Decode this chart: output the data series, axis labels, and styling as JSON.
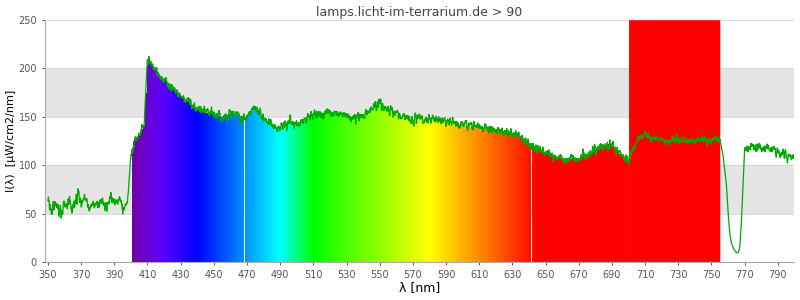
{
  "title": "lamps.licht-im-terrarium.de > 90",
  "xlabel": "λ [nm]",
  "ylabel": "I(λ)  [μW/cm2/nm]",
  "xlim": [
    348,
    800
  ],
  "ylim": [
    0,
    250
  ],
  "xticks": [
    350,
    370,
    390,
    410,
    430,
    450,
    470,
    490,
    510,
    530,
    550,
    570,
    590,
    610,
    630,
    650,
    670,
    690,
    710,
    730,
    750,
    770,
    790
  ],
  "yticks": [
    0,
    50,
    100,
    150,
    200,
    250
  ],
  "title_color": "#444444",
  "line_color": "#00aa00",
  "gray_band_color": "#e5e5e5",
  "figsize": [
    8.0,
    3.0
  ],
  "dpi": 100,
  "spectrum_vis_start": 401,
  "spectrum_vis_end": 700,
  "spectrum_red_start": 700,
  "spectrum_red_end": 755,
  "spectrum_dip_start": 755,
  "spectrum_dip_end": 770,
  "spectrum_after_dip": 770,
  "spectrum_end": 800,
  "envelope": [
    [
      350,
      57
    ],
    [
      352,
      55
    ],
    [
      355,
      60
    ],
    [
      358,
      50
    ],
    [
      360,
      58
    ],
    [
      363,
      65
    ],
    [
      365,
      55
    ],
    [
      368,
      70
    ],
    [
      370,
      60
    ],
    [
      372,
      68
    ],
    [
      375,
      55
    ],
    [
      378,
      62
    ],
    [
      380,
      58
    ],
    [
      383,
      65
    ],
    [
      385,
      55
    ],
    [
      388,
      70
    ],
    [
      390,
      60
    ],
    [
      393,
      68
    ],
    [
      395,
      55
    ],
    [
      398,
      62
    ],
    [
      400,
      110
    ],
    [
      402,
      125
    ],
    [
      404,
      130
    ],
    [
      406,
      135
    ],
    [
      408,
      140
    ],
    [
      410,
      210
    ],
    [
      412,
      205
    ],
    [
      415,
      198
    ],
    [
      418,
      192
    ],
    [
      420,
      188
    ],
    [
      425,
      180
    ],
    [
      430,
      172
    ],
    [
      435,
      165
    ],
    [
      440,
      158
    ],
    [
      445,
      155
    ],
    [
      450,
      152
    ],
    [
      455,
      150
    ],
    [
      460,
      153
    ],
    [
      465,
      152
    ],
    [
      468,
      148
    ],
    [
      470,
      150
    ],
    [
      472,
      155
    ],
    [
      475,
      158
    ],
    [
      478,
      155
    ],
    [
      480,
      148
    ],
    [
      483,
      145
    ],
    [
      485,
      142
    ],
    [
      488,
      140
    ],
    [
      490,
      138
    ],
    [
      492,
      140
    ],
    [
      494,
      142
    ],
    [
      496,
      145
    ],
    [
      498,
      142
    ],
    [
      500,
      143
    ],
    [
      502,
      145
    ],
    [
      505,
      148
    ],
    [
      508,
      150
    ],
    [
      510,
      152
    ],
    [
      515,
      153
    ],
    [
      520,
      155
    ],
    [
      525,
      155
    ],
    [
      528,
      153
    ],
    [
      530,
      152
    ],
    [
      532,
      150
    ],
    [
      535,
      148
    ],
    [
      538,
      150
    ],
    [
      540,
      152
    ],
    [
      542,
      155
    ],
    [
      545,
      158
    ],
    [
      548,
      162
    ],
    [
      550,
      165
    ],
    [
      552,
      162
    ],
    [
      555,
      158
    ],
    [
      558,
      155
    ],
    [
      560,
      153
    ],
    [
      562,
      150
    ],
    [
      565,
      150
    ],
    [
      568,
      148
    ],
    [
      570,
      147
    ],
    [
      572,
      148
    ],
    [
      575,
      148
    ],
    [
      578,
      147
    ],
    [
      580,
      147
    ],
    [
      582,
      148
    ],
    [
      585,
      147
    ],
    [
      588,
      145
    ],
    [
      590,
      145
    ],
    [
      592,
      144
    ],
    [
      595,
      143
    ],
    [
      598,
      142
    ],
    [
      600,
      142
    ],
    [
      602,
      141
    ],
    [
      605,
      140
    ],
    [
      608,
      140
    ],
    [
      610,
      140
    ],
    [
      612,
      139
    ],
    [
      615,
      138
    ],
    [
      618,
      137
    ],
    [
      620,
      137
    ],
    [
      622,
      136
    ],
    [
      625,
      135
    ],
    [
      628,
      133
    ],
    [
      630,
      133
    ],
    [
      632,
      132
    ],
    [
      635,
      130
    ],
    [
      638,
      125
    ],
    [
      640,
      123
    ],
    [
      642,
      120
    ],
    [
      645,
      118
    ],
    [
      648,
      115
    ],
    [
      650,
      113
    ],
    [
      652,
      112
    ],
    [
      655,
      110
    ],
    [
      658,
      108
    ],
    [
      660,
      107
    ],
    [
      662,
      107
    ],
    [
      665,
      107
    ],
    [
      668,
      107
    ],
    [
      670,
      108
    ],
    [
      672,
      110
    ],
    [
      675,
      112
    ],
    [
      678,
      114
    ],
    [
      680,
      115
    ],
    [
      682,
      118
    ],
    [
      685,
      120
    ],
    [
      688,
      122
    ],
    [
      690,
      120
    ],
    [
      692,
      118
    ],
    [
      694,
      115
    ],
    [
      695,
      112
    ],
    [
      697,
      108
    ],
    [
      699,
      105
    ],
    [
      700,
      103
    ]
  ],
  "red_envelope": [
    [
      700,
      103
    ],
    [
      702,
      115
    ],
    [
      705,
      125
    ],
    [
      708,
      130
    ],
    [
      710,
      133
    ],
    [
      712,
      130
    ],
    [
      715,
      128
    ],
    [
      718,
      127
    ],
    [
      720,
      126
    ],
    [
      722,
      125
    ],
    [
      725,
      125
    ],
    [
      728,
      126
    ],
    [
      730,
      126
    ],
    [
      732,
      125
    ],
    [
      735,
      125
    ],
    [
      738,
      126
    ],
    [
      740,
      126
    ],
    [
      742,
      127
    ],
    [
      745,
      127
    ],
    [
      748,
      127
    ],
    [
      750,
      127
    ],
    [
      752,
      127
    ],
    [
      755,
      127
    ]
  ],
  "after_dip_envelope": [
    [
      770,
      118
    ],
    [
      772,
      120
    ],
    [
      775,
      120
    ],
    [
      778,
      118
    ],
    [
      780,
      117
    ],
    [
      782,
      118
    ],
    [
      785,
      117
    ],
    [
      788,
      115
    ],
    [
      790,
      113
    ],
    [
      792,
      112
    ],
    [
      795,
      110
    ],
    [
      798,
      109
    ],
    [
      800,
      108
    ]
  ],
  "dip_envelope": [
    [
      755,
      127
    ],
    [
      757,
      110
    ],
    [
      759,
      80
    ],
    [
      760,
      50
    ],
    [
      761,
      30
    ],
    [
      762,
      20
    ],
    [
      763,
      15
    ],
    [
      764,
      12
    ],
    [
      765,
      10
    ],
    [
      766,
      10
    ],
    [
      767,
      15
    ],
    [
      768,
      40
    ],
    [
      769,
      80
    ],
    [
      770,
      118
    ]
  ]
}
